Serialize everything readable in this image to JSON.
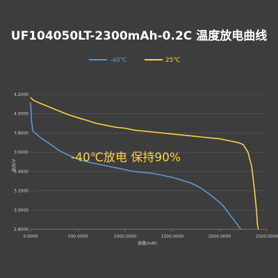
{
  "chart_data": {
    "type": "line",
    "title": "UF104050LT-2300mAh-0.2C 温度放电曲线",
    "xlabel": "容量/mAh",
    "ylabel": "电压/V",
    "xlim": [
      0,
      2500
    ],
    "ylim": [
      2.8,
      4.2
    ],
    "x_ticks": [
      "0.0000",
      "500.0000",
      "1000.0000",
      "1500.0000",
      "2000.0000",
      "2500.0000"
    ],
    "y_ticks": [
      "2.8000",
      "3.0000",
      "3.2000",
      "3.4000",
      "3.6000",
      "3.8000",
      "4.0000",
      "4.2000"
    ],
    "grid": true,
    "legend_position": "top-center",
    "series": [
      {
        "name": "-40℃",
        "color": "#5b9bd5",
        "points": [
          [
            0,
            4.12
          ],
          [
            10,
            3.92
          ],
          [
            25,
            3.82
          ],
          [
            60,
            3.79
          ],
          [
            120,
            3.74
          ],
          [
            200,
            3.69
          ],
          [
            300,
            3.62
          ],
          [
            400,
            3.57
          ],
          [
            500,
            3.53
          ],
          [
            600,
            3.5
          ],
          [
            700,
            3.48
          ],
          [
            800,
            3.46
          ],
          [
            900,
            3.44
          ],
          [
            1000,
            3.42
          ],
          [
            1100,
            3.4
          ],
          [
            1200,
            3.39
          ],
          [
            1300,
            3.38
          ],
          [
            1400,
            3.36
          ],
          [
            1500,
            3.34
          ],
          [
            1600,
            3.31
          ],
          [
            1700,
            3.28
          ],
          [
            1800,
            3.23
          ],
          [
            1900,
            3.16
          ],
          [
            2000,
            3.08
          ],
          [
            2050,
            3.03
          ],
          [
            2100,
            2.96
          ],
          [
            2150,
            2.9
          ],
          [
            2200,
            2.83
          ],
          [
            2225,
            2.8
          ]
        ]
      },
      {
        "name": "25℃",
        "color": "#ffd43b",
        "points": [
          [
            0,
            4.17
          ],
          [
            30,
            4.14
          ],
          [
            100,
            4.11
          ],
          [
            200,
            4.07
          ],
          [
            300,
            4.03
          ],
          [
            400,
            3.99
          ],
          [
            500,
            3.96
          ],
          [
            600,
            3.93
          ],
          [
            700,
            3.9
          ],
          [
            800,
            3.88
          ],
          [
            900,
            3.86
          ],
          [
            1000,
            3.85
          ],
          [
            1100,
            3.83
          ],
          [
            1200,
            3.82
          ],
          [
            1300,
            3.81
          ],
          [
            1400,
            3.8
          ],
          [
            1500,
            3.79
          ],
          [
            1600,
            3.78
          ],
          [
            1700,
            3.77
          ],
          [
            1800,
            3.76
          ],
          [
            1900,
            3.75
          ],
          [
            2000,
            3.74
          ],
          [
            2100,
            3.72
          ],
          [
            2200,
            3.7
          ],
          [
            2250,
            3.68
          ],
          [
            2300,
            3.6
          ],
          [
            2340,
            3.45
          ],
          [
            2370,
            3.2
          ],
          [
            2390,
            3.0
          ],
          [
            2400,
            2.85
          ],
          [
            2410,
            2.8
          ]
        ]
      }
    ],
    "annotation": "-40℃放电 保持90%"
  }
}
